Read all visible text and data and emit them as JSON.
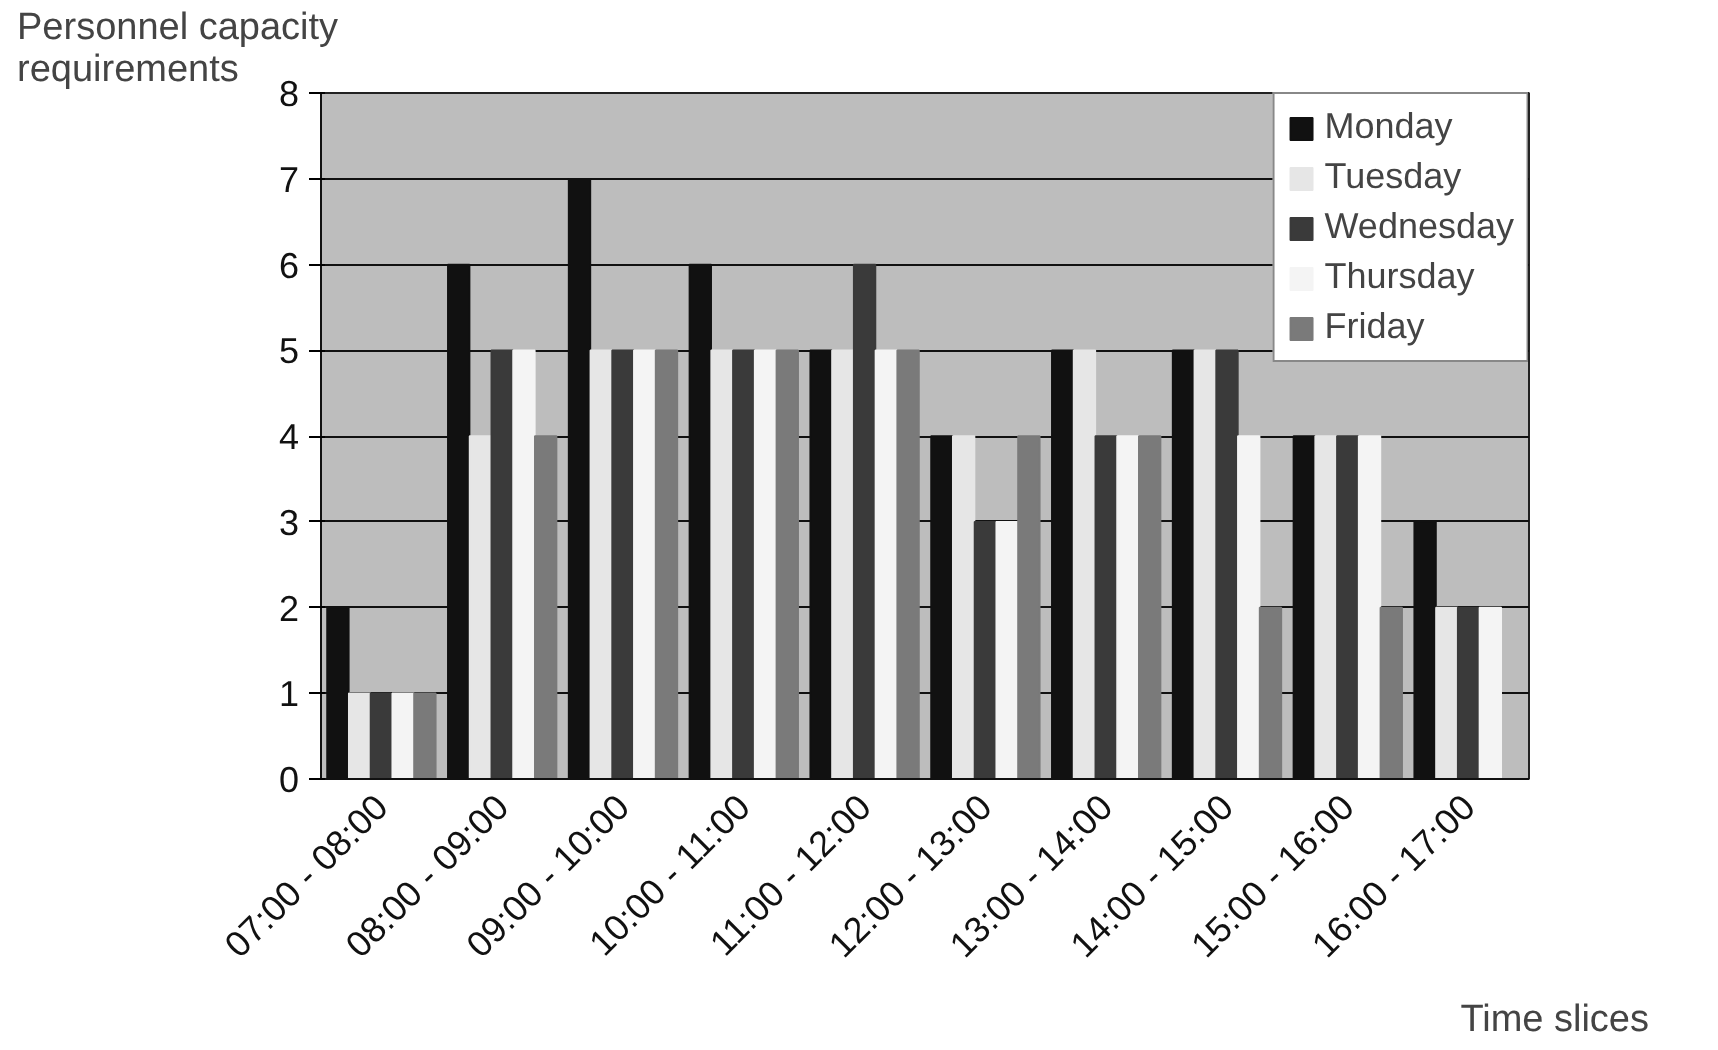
{
  "chart_data": {
    "type": "bar",
    "ylabel": "Personnel capacity\nrequirements",
    "xlabel": "Time slices",
    "categories": [
      "07:00 - 08:00",
      "08:00 - 09:00",
      "09:00 - 10:00",
      "10:00 - 11:00",
      "11:00 - 12:00",
      "12:00 - 13:00",
      "13:00 - 14:00",
      "14:00 - 15:00",
      "15:00 - 16:00",
      "16:00 - 17:00"
    ],
    "series": [
      {
        "name": "Monday",
        "color": "#111111",
        "values": [
          2,
          6,
          7,
          6,
          5,
          4,
          5,
          5,
          4,
          3
        ]
      },
      {
        "name": "Tuesday",
        "color": "#e6e6e6",
        "values": [
          1,
          4,
          5,
          5,
          5,
          4,
          5,
          5,
          4,
          2
        ]
      },
      {
        "name": "Wednesday",
        "color": "#3a3a3a",
        "values": [
          1,
          5,
          5,
          5,
          6,
          3,
          4,
          5,
          4,
          2
        ]
      },
      {
        "name": "Thursday",
        "color": "#f4f4f4",
        "values": [
          1,
          5,
          5,
          5,
          5,
          3,
          4,
          4,
          4,
          2
        ]
      },
      {
        "name": "Friday",
        "color": "#7a7a7a",
        "values": [
          1,
          4,
          5,
          5,
          5,
          4,
          4,
          2,
          2,
          0
        ]
      }
    ],
    "ylim": [
      0,
      8
    ],
    "yticks": [
      0,
      1,
      2,
      3,
      4,
      5,
      6,
      7,
      8
    ],
    "grid": "y",
    "legend": "top right"
  }
}
